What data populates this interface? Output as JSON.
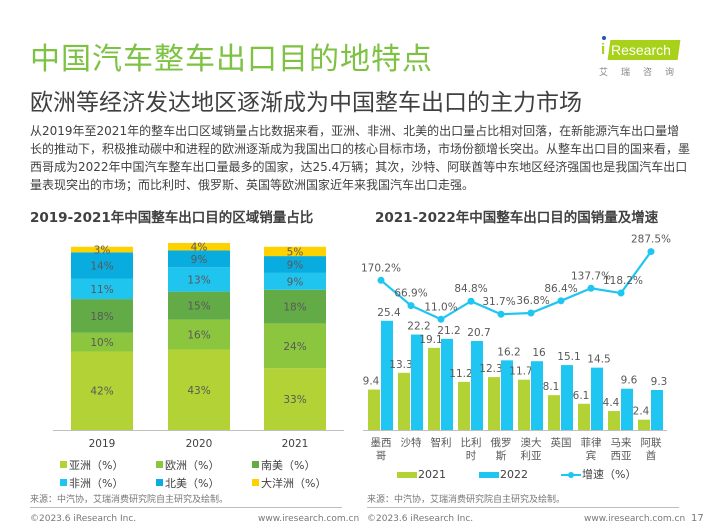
{
  "header": {
    "title": "中国汽车整车出口目的地特点",
    "subtitle": "欧洲等经济发达地区逐渐成为中国整车出口的主力市场",
    "logo_text": "Research",
    "logo_i": "i",
    "logo_cn": "艾瑞咨询"
  },
  "body_text": "从2019年至2021年的整车出口区域销量占比数据来看，亚洲、非洲、北美的出口量占比相对回落，在新能源汽车出口量增长的推动下，积极推动碳中和进程的欧洲逐渐成为我国出口的核心目标市场，市场份额增长突出。从整车出口目的国来看，墨西哥成为2022年中国汽车整车出口量最多的国家，达25.4万辆；其次，沙特、阿联酋等中东地区经济强国也是我国汽车出口量表现突出的市场；而比利时、俄罗斯、英国等欧洲国家近年来我国汽车出口走强。",
  "colors": {
    "brand_green": "#7dc242",
    "asia": "#b2d235",
    "europe": "#8cc63f",
    "south_america": "#62ab46",
    "africa": "#1fc4ef",
    "north_america": "#09acdf",
    "oceania": "#fdd200",
    "bar_2021": "#b2d235",
    "bar_2022": "#1fc6f1",
    "growth_line": "#1fc6f1"
  },
  "chart_data": [
    {
      "type": "bar",
      "stacked": true,
      "title": "2019-2021年中国整车出口目的区域销量占比",
      "categories": [
        "2019",
        "2020",
        "2021"
      ],
      "series": [
        {
          "name": "亚洲（%）",
          "key": "asia",
          "values": [
            42,
            43,
            33
          ],
          "labels": [
            "42%",
            "43%",
            "33%"
          ]
        },
        {
          "name": "欧洲（%）",
          "key": "europe",
          "values": [
            10,
            16,
            24
          ],
          "labels": [
            "10%",
            "16%",
            "24%"
          ]
        },
        {
          "name": "南美（%）",
          "key": "south_america",
          "values": [
            18,
            15,
            18
          ],
          "labels": [
            "18%",
            "15%",
            "18%"
          ]
        },
        {
          "name": "非洲（%）",
          "key": "africa",
          "values": [
            11,
            13,
            9
          ],
          "labels": [
            "11%",
            "13%",
            "9%"
          ]
        },
        {
          "name": "北美（%）",
          "key": "north_america",
          "values": [
            14,
            9,
            9
          ],
          "labels": [
            "14%",
            "9%",
            "9%"
          ]
        },
        {
          "name": "大洋洲（%）",
          "key": "oceania",
          "values": [
            3,
            4,
            5
          ],
          "labels": [
            "3%",
            "4%",
            "5%"
          ]
        }
      ],
      "legend_order": [
        "asia",
        "europe",
        "south_america",
        "africa",
        "north_america",
        "oceania"
      ],
      "legend_position": "bottom",
      "ylim": [
        0,
        100
      ],
      "grid": false,
      "xlabel": "",
      "ylabel": ""
    },
    {
      "type": "bar",
      "title": "2021-2022年中国整车出口目的国销量及增速",
      "categories": [
        "墨西哥",
        "沙特",
        "智利",
        "比利时",
        "俄罗斯",
        "澳大利亚",
        "英国",
        "菲律宾",
        "马来西亚",
        "阿联酋"
      ],
      "category_lines": [
        [
          "墨西",
          "哥"
        ],
        [
          "沙特"
        ],
        [
          "智利"
        ],
        [
          "比利",
          "时"
        ],
        [
          "俄罗",
          "斯"
        ],
        [
          "澳大",
          "利亚"
        ],
        [
          "英国"
        ],
        [
          "菲律",
          "宾"
        ],
        [
          "马来",
          "西亚"
        ],
        [
          "阿联",
          "酋"
        ]
      ],
      "series": [
        {
          "name": "2021",
          "key": "bar_2021",
          "type": "bar",
          "values": [
            9.4,
            13.3,
            19.1,
            11.2,
            12.3,
            11.7,
            8.1,
            6.1,
            4.4,
            2.4
          ],
          "labels": [
            "9.4",
            "13.3",
            "19.1",
            "11.2",
            "12.3",
            "11.7",
            "8.1",
            "6.1",
            "4.4",
            "2.4"
          ]
        },
        {
          "name": "2022",
          "key": "bar_2022",
          "type": "bar",
          "values": [
            25.4,
            22.2,
            21.2,
            20.7,
            16.2,
            16,
            15.1,
            14.5,
            9.6,
            9.3
          ],
          "labels": [
            "25.4",
            "22.2",
            "21.2",
            "20.7",
            "16.2",
            "16",
            "15.1",
            "14.5",
            "9.6",
            "9.3"
          ]
        },
        {
          "name": "增速（%）",
          "key": "growth_line",
          "type": "line",
          "values": [
            170.2,
            66.9,
            11.0,
            84.8,
            31.7,
            36.8,
            86.4,
            137.7,
            118.2,
            287.5
          ],
          "labels": [
            "170.2%",
            "66.9%",
            "11.0%",
            "84.8%",
            "31.7%",
            "36.8%",
            "86.4%",
            "137.7%",
            "118.2%",
            "287.5%"
          ]
        }
      ],
      "ylim_bars": [
        0,
        30
      ],
      "ylim_line": [
        0,
        300
      ],
      "legend_position": "bottom",
      "grid": false,
      "xlabel": "",
      "ylabel": ""
    }
  ],
  "source_left": "来源：中汽协，艾瑞消费研究院自主研究及绘制。",
  "source_right": "来源：中汽协，艾瑞消费研究院自主研究及绘制。",
  "footer": {
    "copyright": "©2023.6 iResearch Inc.",
    "website": "www.iresearch.com.cn",
    "page_number": "17"
  }
}
